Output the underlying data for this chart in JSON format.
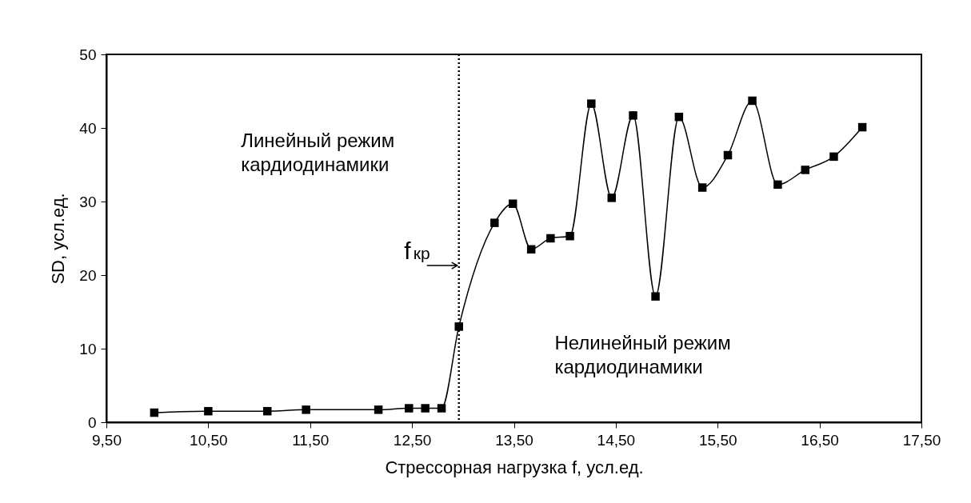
{
  "chart_data": {
    "type": "line",
    "xlabel": "Стрессорная нагрузка f, усл.ед.",
    "ylabel": "SD, усл.ед.",
    "x": [
      9.97,
      10.5,
      11.08,
      11.46,
      12.17,
      12.47,
      12.63,
      12.79,
      12.96,
      13.31,
      13.49,
      13.67,
      13.86,
      14.05,
      14.26,
      14.46,
      14.67,
      14.89,
      15.12,
      15.35,
      15.6,
      15.84,
      16.09,
      16.36,
      16.64,
      16.92
    ],
    "series": [
      {
        "color": "#000000",
        "values": [
          1.3,
          1.5,
          1.5,
          1.7,
          1.7,
          1.9,
          1.9,
          1.9,
          13.0,
          27.1,
          29.7,
          23.5,
          25.0,
          25.3,
          43.3,
          30.5,
          41.7,
          17.1,
          41.5,
          31.9,
          36.3,
          43.7,
          32.3,
          34.3,
          36.1,
          40.1
        ]
      }
    ],
    "xlim": [
      9.5,
      17.5
    ],
    "ylim": [
      0,
      50
    ],
    "xticks": [
      {
        "value": 9.5,
        "label": "9,50"
      },
      {
        "value": 10.5,
        "label": "10,50"
      },
      {
        "value": 11.5,
        "label": "11,50"
      },
      {
        "value": 12.5,
        "label": "12,50"
      },
      {
        "value": 13.5,
        "label": "13,50"
      },
      {
        "value": 14.5,
        "label": "14,50"
      },
      {
        "value": 15.5,
        "label": "15,50"
      },
      {
        "value": 16.5,
        "label": "16,50"
      },
      {
        "value": 17.5,
        "label": "17,50"
      }
    ],
    "yticks": [
      0,
      10,
      20,
      30,
      40,
      50
    ],
    "ref_lines": [
      {
        "axis": "x",
        "value": 12.96,
        "line_style": "dotted",
        "color": "#000000"
      }
    ],
    "annotations": [
      "Линейный режим кардиодинамики",
      "Нелинейный режим кардиодинамики",
      {
        "text": "f$_{кр}$",
        "x": 12.96,
        "y": 21.3
      }
    ],
    "marker": "square",
    "line_style": "solid",
    "grid": false
  }
}
